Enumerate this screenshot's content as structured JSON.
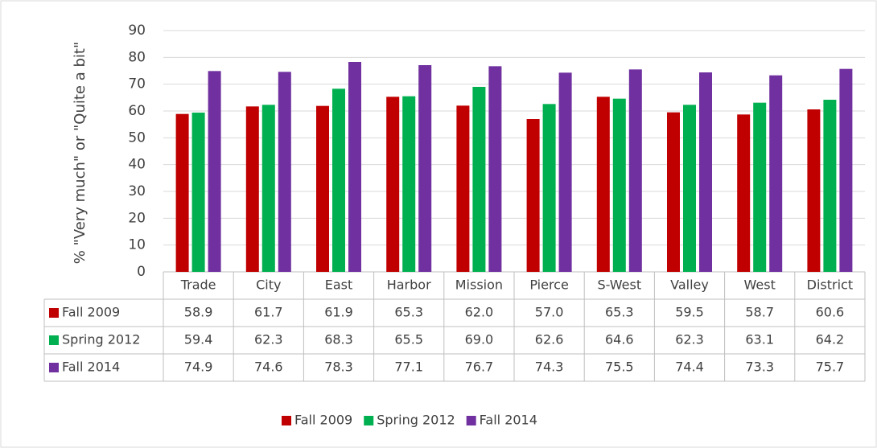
{
  "chart_data": {
    "type": "bar",
    "y_label": "% \"Very much\" or \"Quite a bit\"",
    "categories": [
      "Trade",
      "City",
      "East",
      "Harbor",
      "Mission",
      "Pierce",
      "S-West",
      "Valley",
      "West",
      "District"
    ],
    "series": [
      {
        "name": "Fall 2009",
        "color": "#c00000",
        "values": [
          58.9,
          61.7,
          61.9,
          65.3,
          62.0,
          57.0,
          65.3,
          59.5,
          58.7,
          60.6
        ],
        "value_labels": [
          "58.9",
          "61.7",
          "61.9",
          "65.3",
          "62.0",
          "57.0",
          "65.3",
          "59.5",
          "58.7",
          "60.6"
        ]
      },
      {
        "name": "Spring 2012",
        "color": "#00b050",
        "values": [
          59.4,
          62.3,
          68.3,
          65.5,
          69.0,
          62.6,
          64.6,
          62.3,
          63.1,
          64.2
        ],
        "value_labels": [
          "59.4",
          "62.3",
          "68.3",
          "65.5",
          "69.0",
          "62.6",
          "64.6",
          "62.3",
          "63.1",
          "64.2"
        ]
      },
      {
        "name": "Fall 2014",
        "color": "#7030a0",
        "values": [
          74.9,
          74.6,
          78.3,
          77.1,
          76.7,
          74.3,
          75.5,
          74.4,
          73.3,
          75.7
        ],
        "value_labels": [
          "74.9",
          "74.6",
          "78.3",
          "77.1",
          "76.7",
          "74.3",
          "75.5",
          "74.4",
          "73.3",
          "75.7"
        ]
      }
    ],
    "ylim": [
      0,
      90
    ],
    "yticks": [
      0,
      10,
      20,
      30,
      40,
      50,
      60,
      70,
      80,
      90
    ],
    "grid": true,
    "legend": "bottom"
  }
}
